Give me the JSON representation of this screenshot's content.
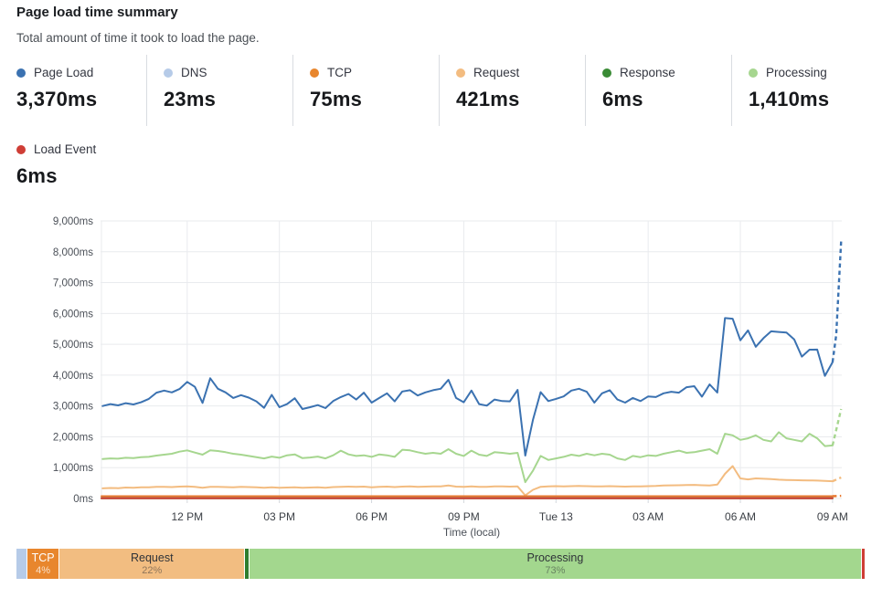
{
  "header": {
    "title": "Page load time summary",
    "subtitle": "Total amount of time it took to load the page."
  },
  "metrics": [
    {
      "label": "Page Load",
      "value": "3,370ms",
      "color": "#3b72b1"
    },
    {
      "label": "DNS",
      "value": "23ms",
      "color": "#b6cbe8"
    },
    {
      "label": "TCP",
      "value": "75ms",
      "color": "#e8862d"
    },
    {
      "label": "Request",
      "value": "421ms",
      "color": "#f3bc80"
    },
    {
      "label": "Response",
      "value": "6ms",
      "color": "#3a8b35"
    },
    {
      "label": "Processing",
      "value": "1,410ms",
      "color": "#a6d68f"
    },
    {
      "label": "Load Event",
      "value": "6ms",
      "color": "#cf3e36"
    }
  ],
  "chart_data": {
    "type": "line",
    "xlabel": "Time (local)",
    "ylabel": "",
    "xlim": [
      9.21,
      33.3
    ],
    "ylim": [
      0,
      9000
    ],
    "grid": true,
    "legend_position": "none",
    "y_ticks": [
      {
        "v": 0,
        "label": "0ms"
      },
      {
        "v": 1000,
        "label": "1,000ms"
      },
      {
        "v": 2000,
        "label": "2,000ms"
      },
      {
        "v": 3000,
        "label": "3,000ms"
      },
      {
        "v": 4000,
        "label": "4,000ms"
      },
      {
        "v": 5000,
        "label": "5,000ms"
      },
      {
        "v": 6000,
        "label": "6,000ms"
      },
      {
        "v": 7000,
        "label": "7,000ms"
      },
      {
        "v": 8000,
        "label": "8,000ms"
      },
      {
        "v": 9000,
        "label": "9,000ms"
      }
    ],
    "x_ticks": [
      {
        "t": 12,
        "label": "12 PM"
      },
      {
        "t": 15,
        "label": "03 PM"
      },
      {
        "t": 18,
        "label": "06 PM"
      },
      {
        "t": 21,
        "label": "09 PM"
      },
      {
        "t": 24,
        "label": "Tue 13"
      },
      {
        "t": 27,
        "label": "03 AM"
      },
      {
        "t": 30,
        "label": "06 AM"
      },
      {
        "t": 33,
        "label": "09 AM"
      }
    ],
    "series": [
      {
        "name": "DNS",
        "color": "#b6cbe8",
        "points": [
          [
            9.21,
            23
          ],
          [
            33.0,
            23
          ]
        ]
      },
      {
        "name": "Response",
        "color": "#3a8b35",
        "points": [
          [
            9.21,
            6
          ],
          [
            33.0,
            6
          ]
        ]
      },
      {
        "name": "Request",
        "color": "#f3bc80",
        "t0": 9.25,
        "dt": 0.25,
        "values": [
          330,
          340,
          335,
          355,
          350,
          360,
          365,
          375,
          380,
          370,
          385,
          390,
          380,
          345,
          375,
          380,
          370,
          365,
          375,
          370,
          360,
          350,
          365,
          350,
          355,
          360,
          345,
          355,
          360,
          350,
          370,
          380,
          385,
          375,
          385,
          365,
          375,
          385,
          370,
          385,
          390,
          380,
          385,
          390,
          395,
          420,
          385,
          375,
          395,
          380,
          375,
          395,
          390,
          385,
          390,
          100,
          280,
          380,
          390,
          400,
          395,
          400,
          405,
          400,
          390,
          395,
          400,
          390,
          385,
          395,
          390,
          400,
          405,
          420,
          425,
          430,
          435,
          440,
          430,
          420,
          450,
          800,
          1050,
          650,
          620,
          650,
          640,
          630,
          610,
          600,
          595,
          590,
          585,
          580,
          570,
          560
        ],
        "tail": [
          [
            33.0,
            560
          ],
          [
            33.28,
            680
          ]
        ]
      },
      {
        "name": "TCP",
        "color": "#e8772d",
        "points": [
          [
            9.21,
            75
          ],
          [
            33.0,
            75
          ]
        ],
        "tail": [
          [
            33.0,
            75
          ],
          [
            33.28,
            85
          ]
        ]
      },
      {
        "name": "Processing",
        "color": "#a6d68f",
        "t0": 9.25,
        "dt": 0.25,
        "values": [
          1280,
          1300,
          1290,
          1320,
          1310,
          1340,
          1350,
          1390,
          1420,
          1450,
          1520,
          1560,
          1490,
          1420,
          1560,
          1540,
          1500,
          1450,
          1420,
          1380,
          1340,
          1300,
          1360,
          1320,
          1400,
          1430,
          1310,
          1330,
          1360,
          1300,
          1400,
          1550,
          1430,
          1380,
          1400,
          1350,
          1430,
          1400,
          1350,
          1580,
          1560,
          1500,
          1450,
          1480,
          1450,
          1600,
          1450,
          1380,
          1550,
          1420,
          1380,
          1500,
          1480,
          1450,
          1480,
          530,
          900,
          1380,
          1250,
          1300,
          1350,
          1420,
          1380,
          1450,
          1400,
          1450,
          1420,
          1300,
          1250,
          1380,
          1340,
          1400,
          1380,
          1450,
          1500,
          1550,
          1480,
          1500,
          1550,
          1600,
          1450,
          2100,
          2050,
          1900,
          1950,
          2050,
          1900,
          1850,
          2150,
          1950,
          1900,
          1850,
          2100,
          1950,
          1700,
          1720
        ],
        "tail": [
          [
            33.0,
            1720
          ],
          [
            33.28,
            2900
          ]
        ]
      },
      {
        "name": "Load Event",
        "color": "#cf3e36",
        "points": [
          [
            9.21,
            6
          ],
          [
            33.0,
            6
          ]
        ]
      },
      {
        "name": "Page Load",
        "color": "#3b72b1",
        "t0": 9.25,
        "dt": 0.25,
        "values": [
          3000,
          3060,
          3020,
          3090,
          3050,
          3120,
          3230,
          3430,
          3500,
          3440,
          3550,
          3780,
          3620,
          3100,
          3900,
          3560,
          3440,
          3260,
          3350,
          3270,
          3150,
          2940,
          3360,
          2960,
          3060,
          3250,
          2900,
          2960,
          3030,
          2930,
          3160,
          3290,
          3390,
          3210,
          3430,
          3110,
          3260,
          3410,
          3150,
          3470,
          3510,
          3340,
          3440,
          3510,
          3560,
          3850,
          3260,
          3120,
          3500,
          3060,
          3010,
          3210,
          3160,
          3150,
          3520,
          1390,
          2550,
          3450,
          3160,
          3230,
          3310,
          3500,
          3560,
          3460,
          3110,
          3410,
          3510,
          3210,
          3110,
          3260,
          3160,
          3310,
          3290,
          3410,
          3460,
          3430,
          3610,
          3640,
          3300,
          3700,
          3435,
          5850,
          5830,
          5130,
          5450,
          4920,
          5200,
          5420,
          5400,
          5380,
          5160,
          4600,
          4825,
          4830,
          3975,
          4420
        ],
        "tail": [
          [
            33.0,
            4420
          ],
          [
            33.12,
            5300
          ],
          [
            33.28,
            8350
          ]
        ]
      }
    ]
  },
  "breakdown_bar": {
    "segments": [
      {
        "name": "DNS",
        "pct_label": "",
        "show_name": false,
        "width_pct": 1.2,
        "color": "#b6cbe8",
        "text": "dark"
      },
      {
        "name": "TCP",
        "pct_label": "4%",
        "show_name": true,
        "width_pct": 3.7,
        "color": "#e8862d",
        "text": "light"
      },
      {
        "name": "Request",
        "pct_label": "22%",
        "show_name": true,
        "width_pct": 21.9,
        "color": "#f2bd81",
        "text": "dark"
      },
      {
        "name": "Response",
        "pct_label": "",
        "show_name": false,
        "width_pct": 0.4,
        "color": "#2e7d2e",
        "text": "light"
      },
      {
        "name": "Processing",
        "pct_label": "73%",
        "show_name": true,
        "width_pct": 72.45,
        "color": "#a3d78e",
        "text": "dark"
      },
      {
        "name": "Load Event",
        "pct_label": "",
        "show_name": false,
        "width_pct": 0.35,
        "color": "#cf3e36",
        "text": "light"
      }
    ]
  }
}
